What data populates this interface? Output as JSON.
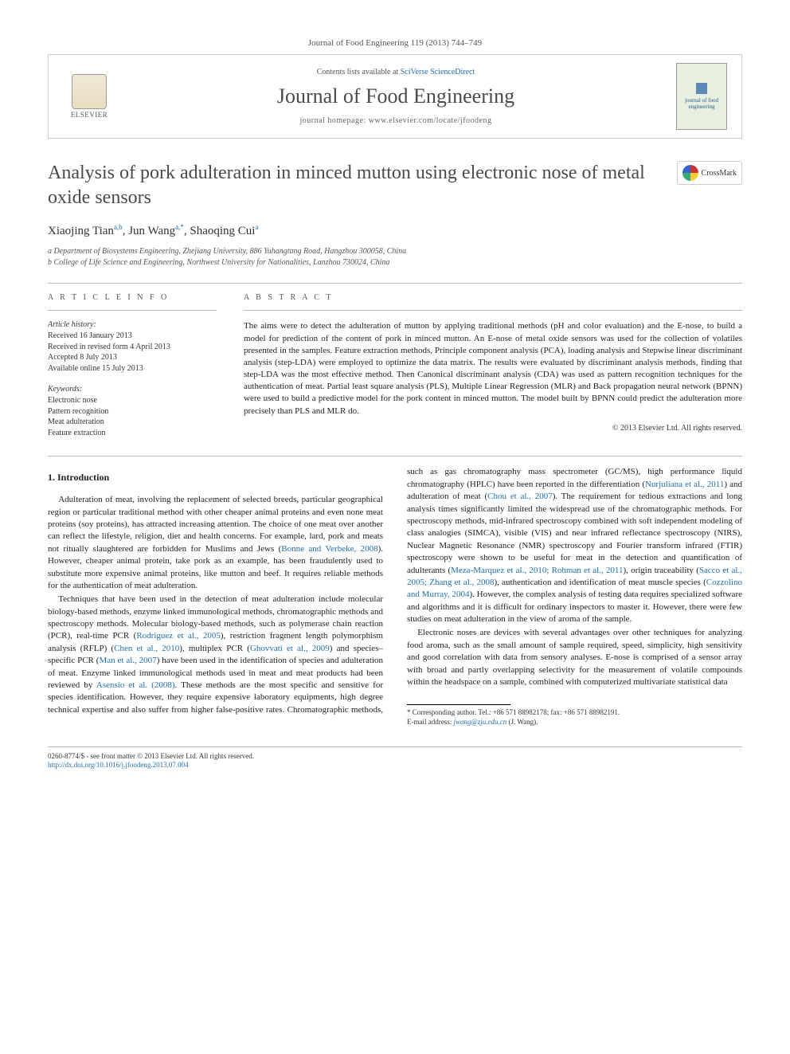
{
  "journal_ref": "Journal of Food Engineering 119 (2013) 744–749",
  "header": {
    "contents_prefix": "Contents lists available at ",
    "contents_link": "SciVerse ScienceDirect",
    "journal_title": "Journal of Food Engineering",
    "homepage_prefix": "journal homepage: ",
    "homepage_url": "www.elsevier.com/locate/jfoodeng",
    "publisher_label": "ELSEVIER",
    "cover_text": "journal of food engineering"
  },
  "crossmark_label": "CrossMark",
  "article": {
    "title": "Analysis of pork adulteration in minced mutton using electronic nose of metal oxide sensors",
    "authors_html": "Xiaojing Tian",
    "author1": "Xiaojing Tian",
    "author1_sup": "a,b",
    "author2": ", Jun Wang",
    "author2_sup": "a,*",
    "author3": ", Shaoqing Cui",
    "author3_sup": "a",
    "affiliations": {
      "a": "a Department of Biosystems Engineering, Zhejiang University, 886 Yuhangtang Road, Hangzhou 300058, China",
      "b": "b College of Life Science and Engineering, Northwest University for Nationalities, Lanzhou 730024, China"
    }
  },
  "info": {
    "head": "A R T I C L E   I N F O",
    "history_head": "Article history:",
    "history": [
      "Received 16 January 2013",
      "Received in revised form 4 April 2013",
      "Accepted 8 July 2013",
      "Available online 15 July 2013"
    ],
    "keywords_head": "Keywords:",
    "keywords": [
      "Electronic nose",
      "Pattern recognition",
      "Meat adulteration",
      "Feature extraction"
    ]
  },
  "abstract": {
    "head": "A B S T R A C T",
    "text": "The aims were to detect the adulteration of mutton by applying traditional methods (pH and color evaluation) and the E-nose, to build a model for prediction of the content of pork in minced mutton. An E-nose of metal oxide sensors was used for the collection of volatiles presented in the samples. Feature extraction methods, Principle component analysis (PCA), loading analysis and Stepwise linear discriminant analysis (step-LDA) were employed to optimize the data matrix. The results were evaluated by discriminant analysis methods, finding that step-LDA was the most effective method. Then Canonical discriminant analysis (CDA) was used as pattern recognition techniques for the authentication of meat. Partial least square analysis (PLS), Multiple Linear Regression (MLR) and Back propagation neural network (BPNN) were used to build a predictive model for the pork content in minced mutton. The model built by BPNN could predict the adulteration more precisely than PLS and MLR do.",
    "copyright": "© 2013 Elsevier Ltd. All rights reserved."
  },
  "section1": {
    "heading": "1. Introduction",
    "p1": "Adulteration of meat, involving the replacement of selected breeds, particular geographical region or particular traditional method with other cheaper animal proteins and even none meat proteins (soy proteins), has attracted increasing attention. The choice of one meat over another can reflect the lifestyle, religion, diet and health concerns. For example, lard, pork and meats not ritually slaughtered are forbidden for Muslims and Jews (",
    "p1_cite1": "Bonne and Verbeke, 2008",
    "p1b": "). However, cheaper animal protein, take pork as an example, has been fraudulently used to substitute more expensive animal proteins, like mutton and beef. It requires reliable methods for the authentication of meat adulteration.",
    "p2": "Techniques that have been used in the detection of meat adulteration include molecular biology-based methods, enzyme linked immunological methods, chromatographic methods and spectroscopy methods. Molecular biology-based methods, such as polymerase chain reaction (PCR), real-time PCR (",
    "p2_cite1": "Rodriguez et al., 2005",
    "p2b": "), restriction fragment length polymorphism analysis (RFLP) (",
    "p2_cite2": "Chen et al., 2010",
    "p2c": "), multiplex PCR (",
    "p2_cite3": "Ghovvati et al., 2009",
    "p2d": ") and species–specific PCR (",
    "p2_cite4": "Man et al., 2007",
    "p2e": ") have been used in the identification of species and adulteration of meat. Enzyme linked immunological methods used in meat and meat products had been reviewed by ",
    "p2_cite5": "Asensio et al. (2008)",
    "p2f": ". These methods are the most specific and sensitive for species identification. However, they require expensive laboratory equipments, high degree technical expertise and also suffer from higher false-positive rates. Chromatographic methods, such as gas chromatography mass spectrometer (GC/MS), high performance liquid chromatography (HPLC) have been reported in the differentiation (",
    "p2_cite6": "Nurjuliana et al., 2011",
    "p2g": ") and adulteration of meat (",
    "p2_cite7": "Chou et al., 2007",
    "p2h": "). The requirement for tedious extractions and long analysis times significantly limited the widespread use of the chromatographic methods. For spectroscopy methods, mid-infrared spectroscopy combined with soft independent modeling of class analogies (SIMCA), visible (VIS) and near infrared reflectance spectroscopy (NIRS), Nuclear Magnetic Resonance (NMR) spectroscopy and Fourier transform infrared (FTIR) spectroscopy were shown to be useful for meat in the detection and quantification of adulterants (",
    "p2_cite8": "Meza-Marquez et al., 2010; Rohman et al., 2011",
    "p2i": "), origin traceability (",
    "p2_cite9": "Sacco et al., 2005; Zhang et al., 2008",
    "p2j": "), authentication and identification of meat muscle species (",
    "p2_cite10": "Cozzolino and Murray, 2004",
    "p2k": "). However, the complex analysis of testing data requires specialized software and algorithms and it is difficult for ordinary inspectors to master it. However, there were few studies on meat adulteration in the view of aroma of the sample.",
    "p3": "Electronic noses are devices with several advantages over other techniques for analyzing food aroma, such as the small amount of sample required, speed, simplicity, high sensitivity and good correlation with data from sensory analyses. E-nose is comprised of a sensor array with broad and partly overlapping selectivity for the measurement of volatile compounds within the headspace on a sample, combined with computerized multivariate statistical data"
  },
  "footnote": {
    "corr": "* Corresponding author. Tel.: +86 571 88982178; fax: +86 571 88982191.",
    "email_label": "E-mail address: ",
    "email": "jwang@zju.edu.cn",
    "email_tail": " (J. Wang)."
  },
  "footer": {
    "line1": "0260-8774/$ - see front matter © 2013 Elsevier Ltd. All rights reserved.",
    "doi": "http://dx.doi.org/10.1016/j.jfoodeng.2013.07.004"
  },
  "colors": {
    "link": "#1f6fb2",
    "border": "#cccccc",
    "rule": "#bbbbbb",
    "text": "#333333"
  }
}
